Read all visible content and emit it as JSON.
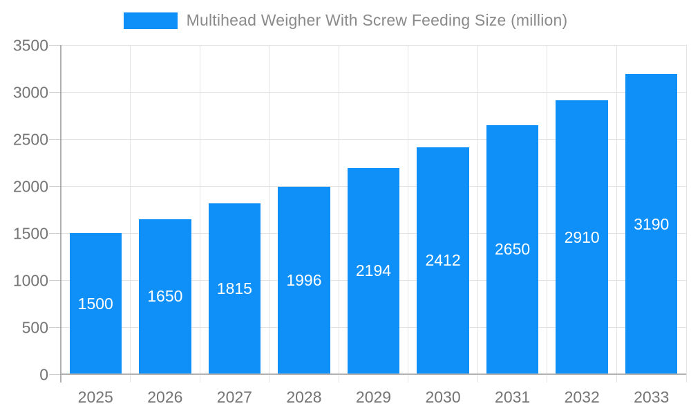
{
  "legend": {
    "label": "Multihead Weigher With Screw Feeding Size (million)"
  },
  "chart_data": {
    "type": "bar",
    "title": "Multihead Weigher With Screw Feeding Size (million)",
    "series_name": "Multihead Weigher With Screw Feeding Size (million)",
    "categories": [
      "2025",
      "2026",
      "2027",
      "2028",
      "2029",
      "2030",
      "2031",
      "2032",
      "2033"
    ],
    "values": [
      1500,
      1650,
      1815,
      1996,
      2194,
      2412,
      2650,
      2910,
      3190
    ],
    "xlabel": "",
    "ylabel": "",
    "ylim": [
      0,
      3500
    ],
    "yticks": [
      0,
      500,
      1000,
      1500,
      2000,
      2500,
      3000,
      3500
    ],
    "grid": true,
    "legend_position": "top",
    "value_labels": "inside-center",
    "colors": {
      "bar": "#0E90F8",
      "value_label": "#ffffff",
      "gridline": "#e3e3e3",
      "axis_line": "#b0b0b0",
      "tick_label": "#757575",
      "legend_text": "#8a8a8a"
    }
  }
}
